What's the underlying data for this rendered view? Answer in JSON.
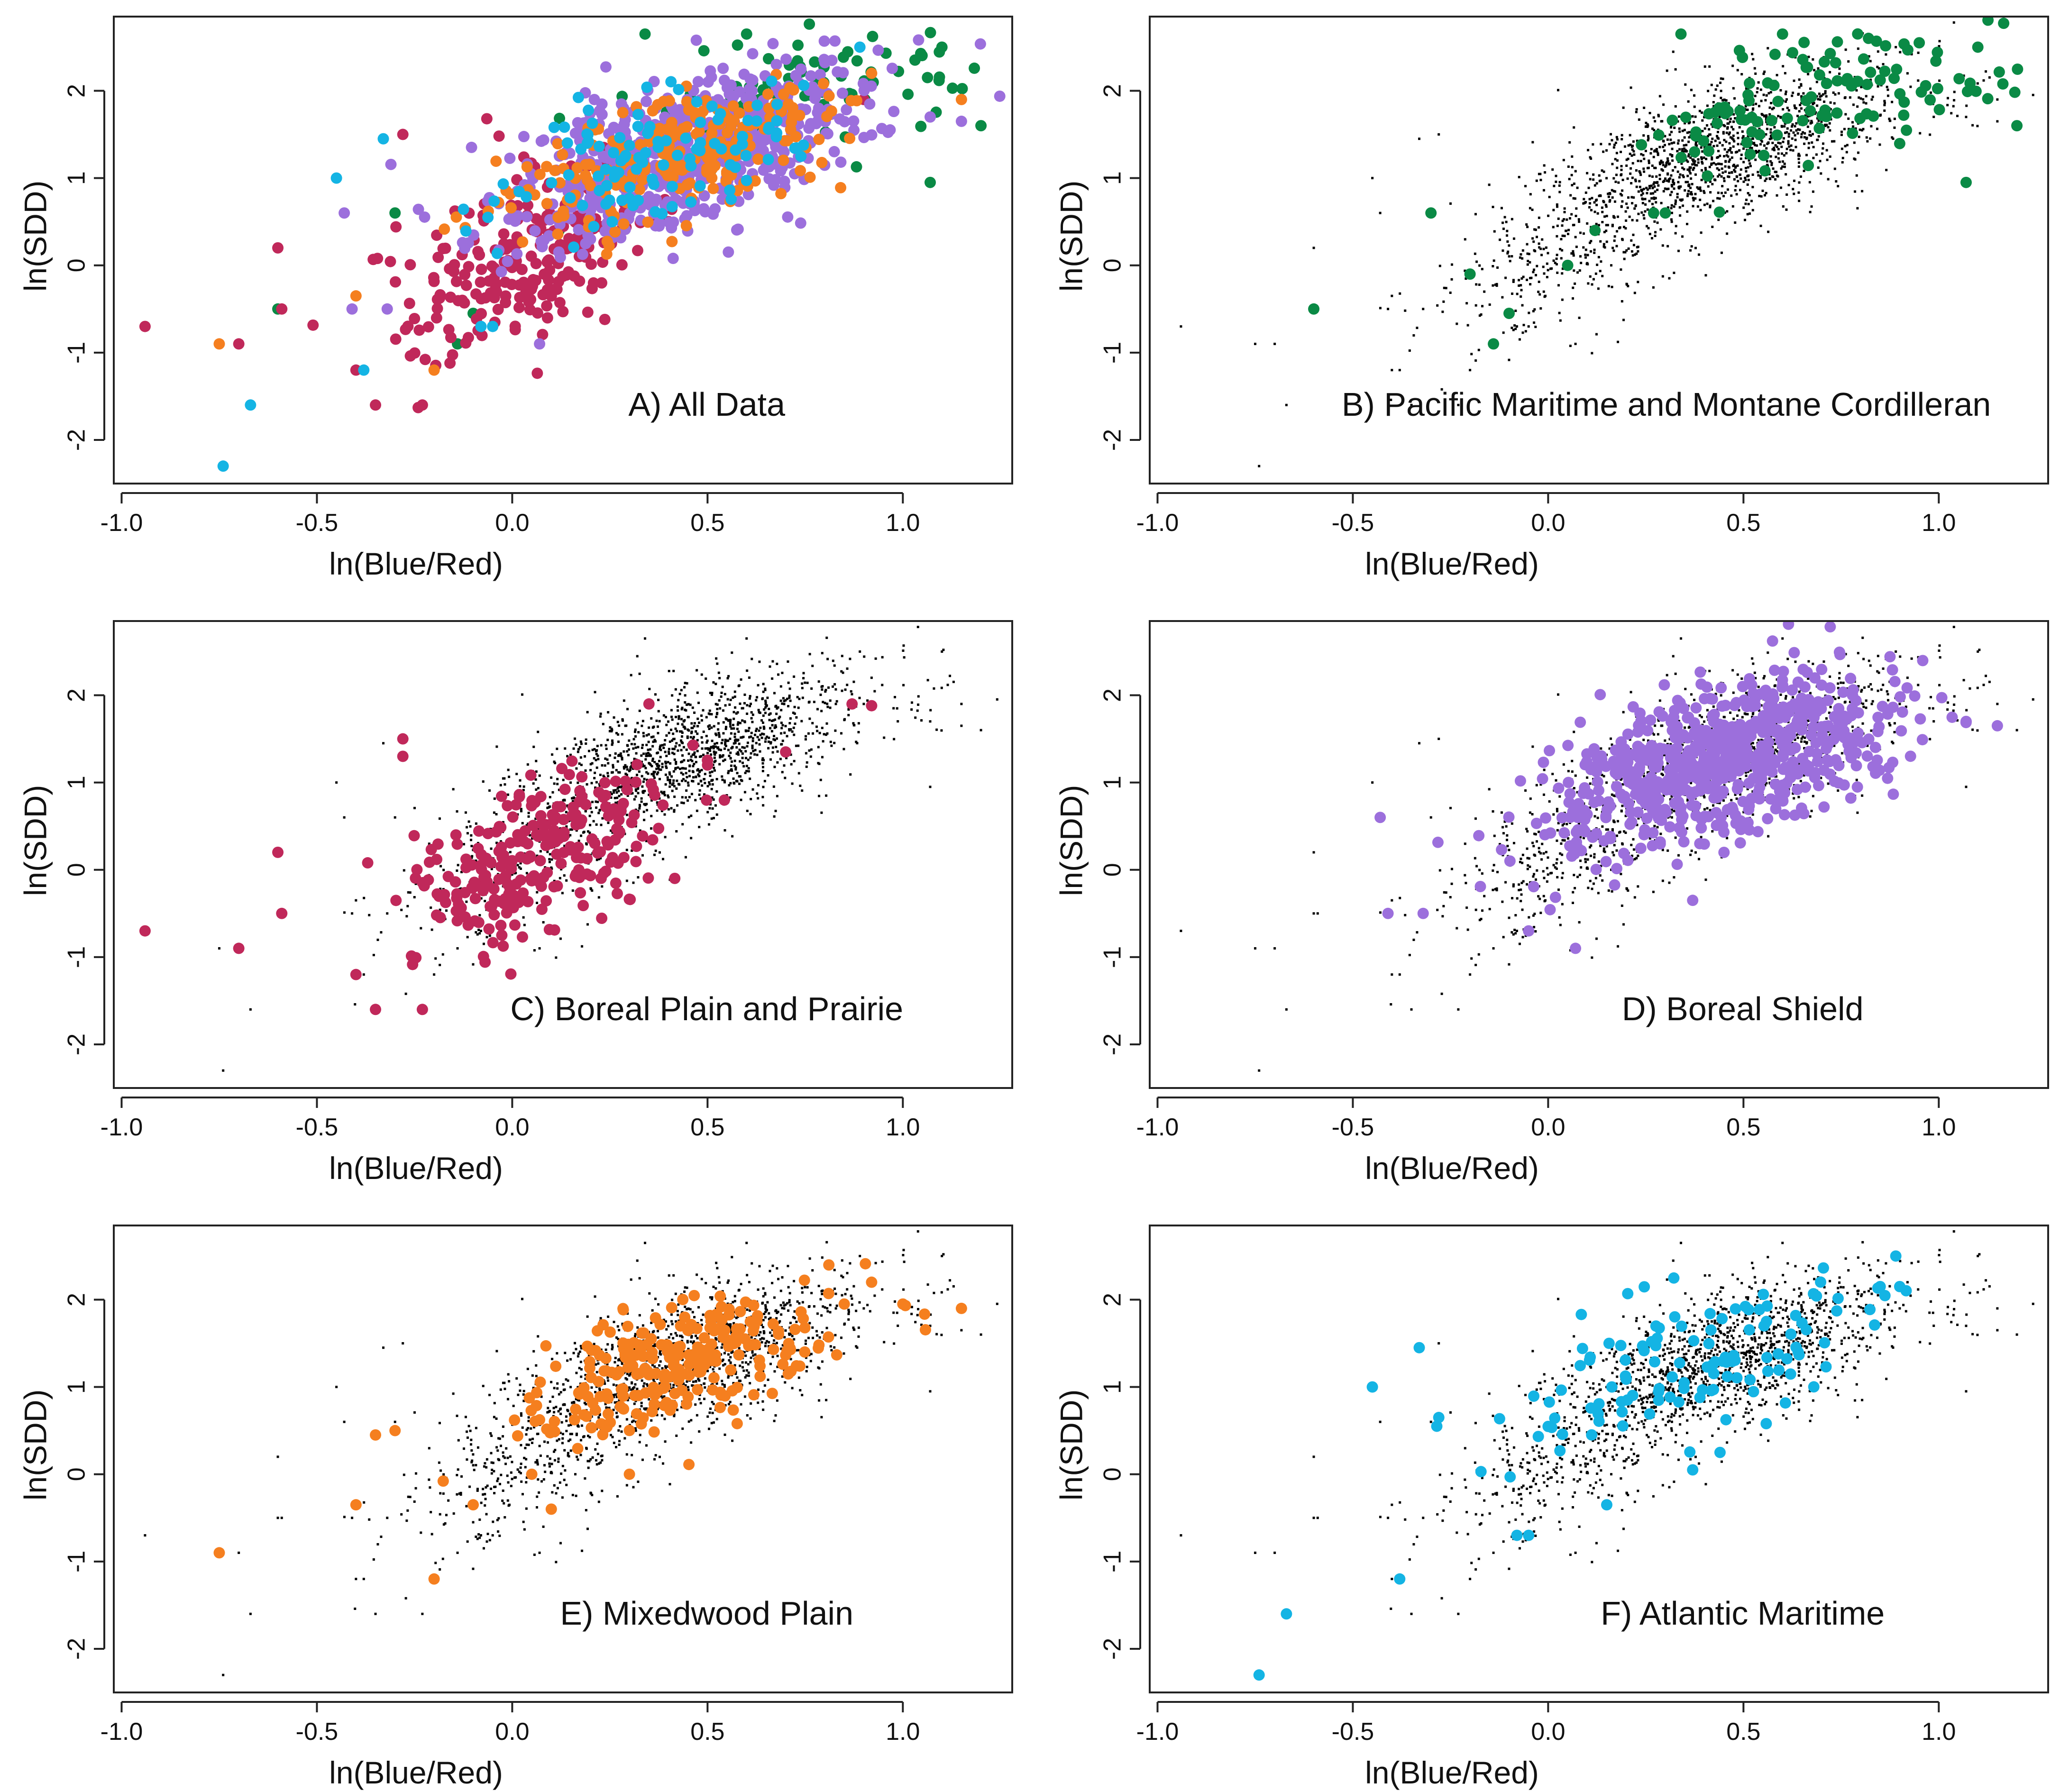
{
  "colors": {
    "green": "#0a8a45",
    "crimson": "#c0285a",
    "purple": "#9c6fdc",
    "orange": "#f57f1f",
    "cyan": "#14b4e4",
    "background_points": "#000000"
  },
  "axis_common": {
    "xlabel": "ln(Blue/Red)",
    "ylabel": "ln(SDD)",
    "x_ticks": [
      "-1.0",
      "-0.5",
      "0.0",
      "0.5",
      "1.0"
    ],
    "x_tick_values": [
      -1.0,
      -0.5,
      0.0,
      0.5,
      1.0
    ],
    "y_ticks": [
      "-2",
      "-1",
      "0",
      "1",
      "2"
    ],
    "y_tick_values": [
      -2,
      -1,
      0,
      1,
      2
    ],
    "xlim": [
      -1.02,
      1.28
    ],
    "ylim": [
      -2.5,
      2.85
    ]
  },
  "chart_data": [
    {
      "type": "scatter",
      "panel": "A",
      "title": "A) All Data",
      "background_all_points": false,
      "series": [
        {
          "name": "",
          "color": "green",
          "cluster": {
            "cx": 0.75,
            "cy": 1.95,
            "sx": 0.22,
            "sy": 0.4,
            "rho": 0.45,
            "n": 90
          },
          "points": [
            [
              -0.6,
              -0.5
            ],
            [
              -0.3,
              0.6
            ],
            [
              -0.14,
              -0.9
            ],
            [
              -0.1,
              -0.55
            ],
            [
              0.12,
              0.4
            ],
            [
              0.34,
              2.65
            ],
            [
              1.07,
              0.95
            ],
            [
              1.2,
              1.6
            ],
            [
              1.1,
              2.5
            ],
            [
              0.6,
              2.65
            ]
          ]
        },
        {
          "name": "",
          "color": "crimson",
          "cluster": {
            "cx": 0.05,
            "cy": 0.1,
            "sx": 0.17,
            "sy": 0.55,
            "rho": 0.55,
            "n": 240
          },
          "points": [
            [
              -0.94,
              -0.7
            ],
            [
              -0.7,
              -0.9
            ],
            [
              -0.6,
              0.2
            ],
            [
              -0.59,
              -0.5
            ],
            [
              -0.4,
              -1.2
            ],
            [
              -0.35,
              -1.6
            ],
            [
              -0.23,
              -1.6
            ],
            [
              -0.28,
              1.5
            ],
            [
              0.9,
              1.9
            ]
          ]
        },
        {
          "name": "",
          "color": "purple",
          "cluster": {
            "cx": 0.45,
            "cy": 1.3,
            "sx": 0.22,
            "sy": 0.5,
            "rho": 0.55,
            "n": 600
          },
          "points": [
            [
              -0.43,
              0.6
            ],
            [
              -0.41,
              -0.5
            ],
            [
              -0.32,
              -0.5
            ],
            [
              0.07,
              -0.9
            ],
            [
              1.07,
              1.7
            ],
            [
              1.15,
              1.65
            ]
          ]
        },
        {
          "name": "",
          "color": "orange",
          "cluster": {
            "cx": 0.42,
            "cy": 1.25,
            "sx": 0.2,
            "sy": 0.4,
            "rho": 0.55,
            "n": 230
          },
          "points": [
            [
              -0.75,
              -0.9
            ],
            [
              -0.2,
              -1.2
            ],
            [
              -0.4,
              -0.35
            ],
            [
              1.15,
              1.9
            ],
            [
              0.92,
              2.2
            ]
          ]
        },
        {
          "name": "",
          "color": "cyan",
          "cluster": {
            "cx": 0.38,
            "cy": 1.2,
            "sx": 0.22,
            "sy": 0.45,
            "rho": 0.5,
            "n": 110
          },
          "points": [
            [
              -0.74,
              -2.3
            ],
            [
              -0.67,
              -1.6
            ],
            [
              -0.38,
              -1.2
            ],
            [
              -0.45,
              1.0
            ],
            [
              -0.33,
              1.45
            ],
            [
              0.89,
              2.5
            ],
            [
              -0.08,
              -0.7
            ],
            [
              -0.05,
              -0.7
            ]
          ]
        }
      ]
    },
    {
      "type": "scatter",
      "panel": "B",
      "title": "B) Pacific Maritime and Montane Cordilleran",
      "background_all_points": true,
      "series": [
        {
          "name": "",
          "color": "green",
          "cluster": {
            "cx": 0.7,
            "cy": 1.95,
            "sx": 0.24,
            "sy": 0.42,
            "rho": 0.45,
            "n": 110
          },
          "points": [
            [
              -0.6,
              -0.5
            ],
            [
              -0.3,
              0.6
            ],
            [
              -0.14,
              -0.9
            ],
            [
              -0.1,
              -0.55
            ],
            [
              -0.2,
              -0.1
            ],
            [
              0.05,
              0.0
            ],
            [
              0.12,
              0.4
            ],
            [
              0.34,
              2.65
            ],
            [
              1.07,
              0.95
            ],
            [
              1.2,
              1.6
            ],
            [
              1.1,
              2.5
            ],
            [
              0.6,
              2.65
            ],
            [
              0.95,
              2.55
            ],
            [
              0.27,
              0.6
            ],
            [
              0.3,
              0.6
            ]
          ]
        }
      ]
    },
    {
      "type": "scatter",
      "panel": "C",
      "title": "C) Boreal Plain and Prairie",
      "background_all_points": true,
      "series": [
        {
          "name": "",
          "color": "crimson",
          "cluster": {
            "cx": 0.05,
            "cy": 0.1,
            "sx": 0.17,
            "sy": 0.55,
            "rho": 0.55,
            "n": 260
          },
          "points": [
            [
              -0.94,
              -0.7
            ],
            [
              -0.7,
              -0.9
            ],
            [
              -0.6,
              0.2
            ],
            [
              -0.59,
              -0.5
            ],
            [
              -0.4,
              -1.2
            ],
            [
              -0.35,
              -1.6
            ],
            [
              -0.23,
              -1.6
            ],
            [
              -0.28,
              1.5
            ],
            [
              -0.28,
              1.3
            ],
            [
              0.87,
              1.9
            ],
            [
              0.92,
              1.88
            ],
            [
              0.7,
              1.35
            ],
            [
              0.5,
              1.2
            ],
            [
              0.35,
              1.9
            ]
          ]
        }
      ]
    },
    {
      "type": "scatter",
      "panel": "D",
      "title": "D) Boreal Shield",
      "background_all_points": true,
      "series": [
        {
          "name": "",
          "color": "purple",
          "cluster": {
            "cx": 0.45,
            "cy": 1.3,
            "sx": 0.22,
            "sy": 0.5,
            "rho": 0.55,
            "n": 700
          },
          "points": [
            [
              -0.43,
              0.6
            ],
            [
              -0.41,
              -0.5
            ],
            [
              -0.32,
              -0.5
            ],
            [
              0.07,
              -0.9
            ],
            [
              1.07,
              1.7
            ],
            [
              1.15,
              1.65
            ],
            [
              -0.05,
              -0.7
            ],
            [
              0.37,
              -0.35
            ]
          ]
        }
      ]
    },
    {
      "type": "scatter",
      "panel": "E",
      "title": "E) Mixedwood Plain",
      "background_all_points": true,
      "series": [
        {
          "name": "",
          "color": "orange",
          "cluster": {
            "cx": 0.42,
            "cy": 1.25,
            "sx": 0.2,
            "sy": 0.42,
            "rho": 0.55,
            "n": 250
          },
          "points": [
            [
              -0.75,
              -0.9
            ],
            [
              -0.2,
              -1.2
            ],
            [
              -0.4,
              -0.35
            ],
            [
              -0.35,
              0.45
            ],
            [
              -0.3,
              0.5
            ],
            [
              -0.1,
              -0.35
            ],
            [
              0.1,
              -0.4
            ],
            [
              0.05,
              0.0
            ],
            [
              0.3,
              0.0
            ],
            [
              1.15,
              1.9
            ],
            [
              0.92,
              2.2
            ],
            [
              1.0,
              1.95
            ],
            [
              0.85,
              1.95
            ]
          ]
        }
      ]
    },
    {
      "type": "scatter",
      "panel": "F",
      "title": "F) Atlantic Maritime",
      "background_all_points": true,
      "series": [
        {
          "name": "",
          "color": "cyan",
          "cluster": {
            "cx": 0.38,
            "cy": 1.25,
            "sx": 0.22,
            "sy": 0.45,
            "rho": 0.5,
            "n": 120
          },
          "points": [
            [
              -0.74,
              -2.3
            ],
            [
              -0.67,
              -1.6
            ],
            [
              -0.38,
              -1.2
            ],
            [
              -0.45,
              1.0
            ],
            [
              -0.33,
              1.45
            ],
            [
              -0.28,
              0.65
            ],
            [
              0.89,
              2.5
            ],
            [
              -0.08,
              -0.7
            ],
            [
              -0.05,
              -0.7
            ],
            [
              0.15,
              -0.35
            ],
            [
              0.37,
              0.05
            ],
            [
              0.44,
              0.25
            ],
            [
              0.85,
              2.15
            ],
            [
              0.9,
              2.15
            ]
          ]
        }
      ]
    }
  ]
}
